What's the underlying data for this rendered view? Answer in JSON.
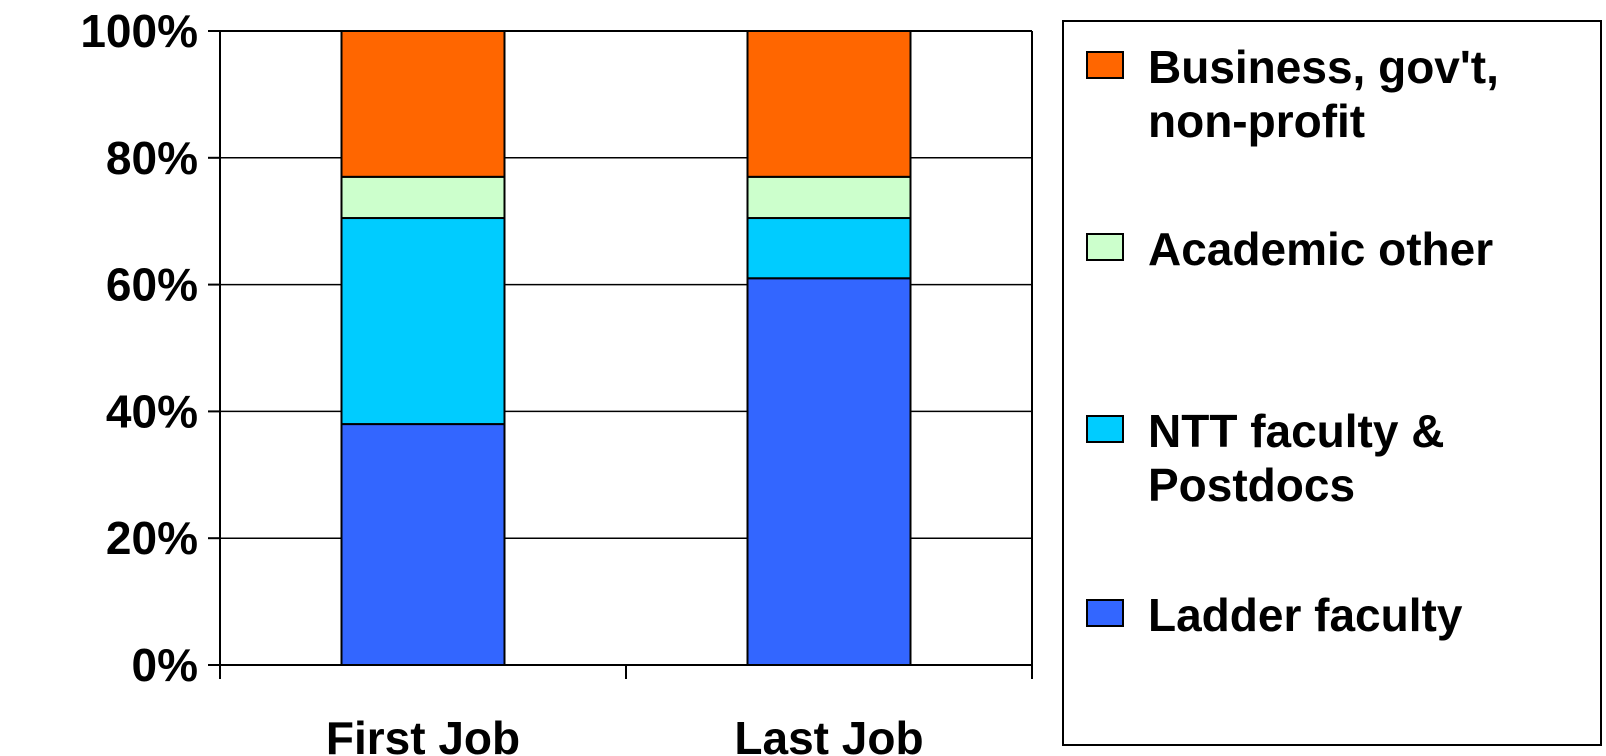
{
  "chart_data": {
    "type": "bar",
    "stacked": true,
    "percent": true,
    "categories": [
      "First Job",
      "Last Job"
    ],
    "series": [
      {
        "name": "Ladder faculty",
        "color": "#3366FF",
        "values": [
          38,
          61
        ]
      },
      {
        "name": "NTT faculty & Postdocs",
        "color": "#00CCFF",
        "values": [
          32.5,
          9.5
        ]
      },
      {
        "name": "Academic other",
        "color": "#CCFFCC",
        "values": [
          6.5,
          6.5
        ]
      },
      {
        "name": "Business, gov't, non-profit",
        "color": "#FF6600",
        "values": [
          23,
          23
        ]
      }
    ],
    "ylim": [
      0,
      100
    ],
    "yticks": [
      "0%",
      "20%",
      "40%",
      "60%",
      "80%",
      "100%"
    ],
    "grid": true,
    "legend_position": "right",
    "legend_order": [
      "Business, gov't, non-profit",
      "Academic other",
      "NTT faculty & Postdocs",
      "Ladder faculty"
    ]
  }
}
